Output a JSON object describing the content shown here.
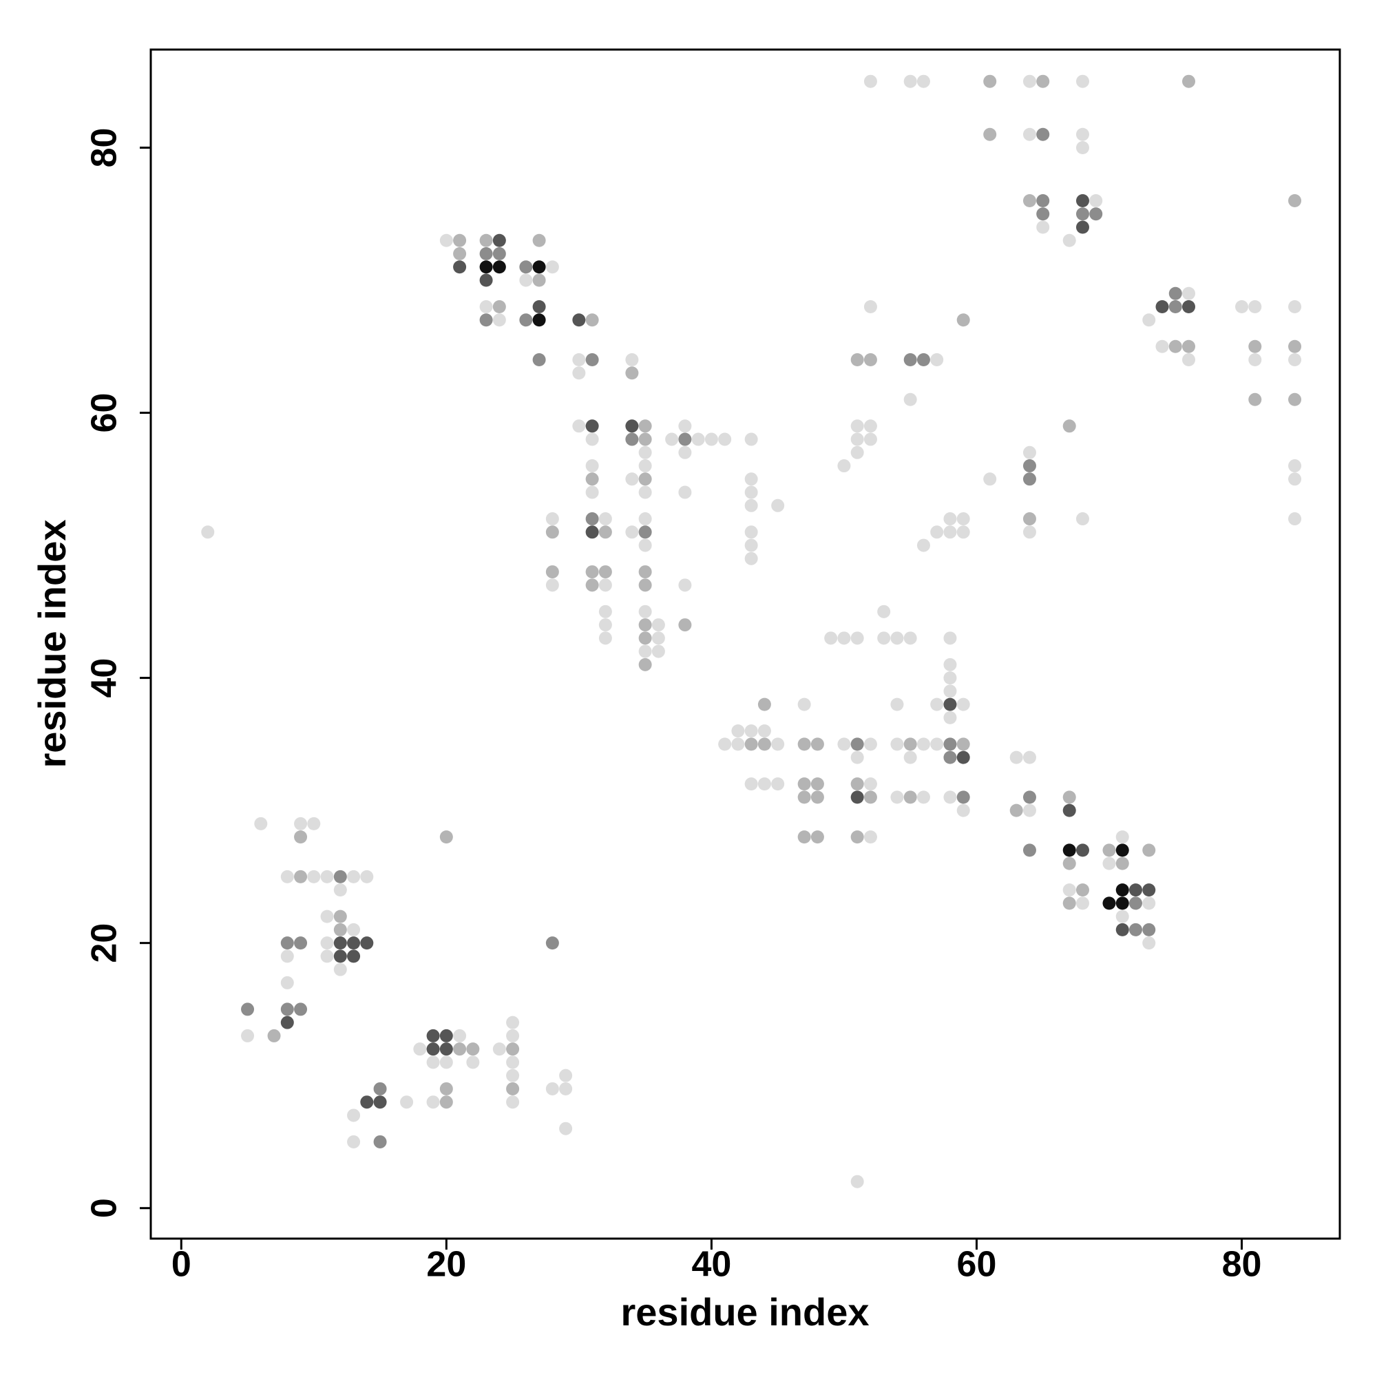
{
  "chart_data": {
    "type": "scatter",
    "xlabel": "residue index",
    "ylabel": "residue index",
    "xlim": [
      -2.3,
      87.4
    ],
    "ylim": [
      -2.3,
      87.4
    ],
    "xticks": [
      0,
      20,
      40,
      60,
      80
    ],
    "yticks": [
      0,
      20,
      40,
      60,
      80
    ],
    "grid": false,
    "x": [
      2,
      6,
      9,
      10,
      9,
      8,
      9,
      10,
      11,
      12,
      13,
      14,
      12,
      11,
      12,
      12,
      13,
      8,
      9,
      11,
      12,
      13,
      14,
      8,
      11,
      12,
      13,
      12,
      8,
      5,
      8,
      9,
      8,
      5,
      7,
      20,
      28,
      19,
      20,
      21,
      18,
      19,
      20,
      21,
      22,
      24,
      25,
      19,
      20,
      22,
      25,
      25,
      25,
      25,
      25,
      25,
      20,
      19,
      20,
      17,
      14,
      15,
      15,
      13,
      13,
      15,
      28,
      29,
      29,
      29,
      20,
      21,
      23,
      24,
      21,
      23,
      24,
      21,
      23,
      24,
      23,
      26,
      27,
      27,
      26,
      27,
      28,
      23,
      24,
      23,
      24,
      26,
      27,
      27,
      27,
      30,
      31,
      30,
      31,
      30,
      30,
      31,
      31,
      31,
      31,
      31,
      28,
      28,
      31,
      32,
      31,
      32,
      28,
      28,
      31,
      32,
      31,
      32,
      32,
      32,
      32,
      34,
      34,
      34,
      35,
      34,
      35,
      35,
      35,
      34,
      35,
      35,
      35,
      34,
      35,
      35,
      35,
      35,
      35,
      35,
      36,
      35,
      36,
      35,
      36,
      35,
      37,
      38,
      38,
      39,
      40,
      41,
      38,
      38,
      38,
      38,
      43,
      43,
      43,
      43,
      45,
      43,
      43,
      43,
      41,
      42,
      42,
      43,
      43,
      44,
      44,
      45,
      44,
      43,
      44,
      45,
      47,
      47,
      48,
      47,
      48,
      47,
      48,
      47,
      48,
      49,
      50,
      51,
      50,
      51,
      52,
      51,
      51,
      52,
      51,
      52,
      51,
      52,
      53,
      53,
      54,
      55,
      54,
      54,
      55,
      56,
      55,
      54,
      55,
      56,
      57,
      58,
      59,
      58,
      58,
      58,
      58,
      58,
      57,
      58,
      59,
      58,
      59,
      58,
      59,
      59,
      51,
      50,
      51,
      52,
      51,
      52,
      51,
      51,
      52,
      52,
      55,
      56,
      57,
      55,
      56,
      57,
      58,
      59,
      58,
      59,
      59,
      52,
      55,
      56,
      61,
      61,
      64,
      65,
      64,
      65,
      68,
      68,
      68,
      76,
      64,
      65,
      65,
      65,
      67,
      68,
      69,
      68,
      69,
      68,
      61,
      64,
      64,
      64,
      64,
      64,
      67,
      68,
      73,
      74,
      75,
      76,
      75,
      76,
      74,
      75,
      76,
      76,
      80,
      81,
      81,
      81,
      81,
      84,
      84,
      84,
      84,
      84,
      84,
      84,
      84,
      63,
      64,
      63,
      64,
      64,
      64,
      67,
      67,
      67,
      68,
      67,
      67,
      68,
      67,
      68,
      70,
      71,
      71,
      70,
      71,
      71,
      72,
      73,
      70,
      71,
      72,
      73,
      71,
      71,
      72,
      73,
      73,
      73
    ],
    "y": [
      51,
      29,
      29,
      29,
      28,
      25,
      25,
      25,
      25,
      25,
      25,
      25,
      24,
      22,
      22,
      21,
      21,
      20,
      20,
      20,
      20,
      20,
      20,
      19,
      19,
      19,
      19,
      18,
      17,
      15,
      15,
      15,
      14,
      13,
      13,
      28,
      20,
      13,
      13,
      13,
      12,
      12,
      12,
      12,
      12,
      12,
      12,
      11,
      11,
      11,
      11,
      13,
      14,
      10,
      9,
      8,
      9,
      8,
      8,
      8,
      8,
      8,
      9,
      7,
      5,
      5,
      9,
      9,
      10,
      6,
      73,
      73,
      73,
      73,
      72,
      72,
      72,
      71,
      71,
      71,
      70,
      71,
      71,
      73,
      70,
      70,
      71,
      68,
      68,
      67,
      67,
      67,
      67,
      68,
      64,
      67,
      67,
      64,
      64,
      63,
      59,
      59,
      58,
      56,
      55,
      54,
      52,
      51,
      52,
      52,
      51,
      51,
      48,
      47,
      48,
      48,
      47,
      47,
      45,
      44,
      43,
      64,
      63,
      59,
      59,
      58,
      58,
      57,
      56,
      55,
      55,
      54,
      52,
      51,
      51,
      50,
      48,
      47,
      45,
      44,
      44,
      43,
      43,
      42,
      42,
      41,
      58,
      59,
      58,
      58,
      58,
      58,
      57,
      54,
      47,
      44,
      58,
      55,
      54,
      53,
      53,
      51,
      50,
      49,
      35,
      36,
      35,
      36,
      35,
      36,
      35,
      35,
      38,
      32,
      32,
      32,
      38,
      35,
      35,
      32,
      32,
      31,
      31,
      28,
      28,
      43,
      43,
      43,
      35,
      35,
      35,
      34,
      32,
      32,
      31,
      31,
      28,
      28,
      45,
      43,
      43,
      43,
      38,
      35,
      35,
      35,
      34,
      31,
      31,
      31,
      38,
      38,
      38,
      43,
      41,
      40,
      39,
      37,
      35,
      35,
      35,
      34,
      34,
      31,
      31,
      30,
      2,
      56,
      59,
      59,
      58,
      58,
      57,
      64,
      64,
      68,
      64,
      64,
      64,
      61,
      50,
      51,
      52,
      52,
      51,
      51,
      67,
      85,
      85,
      85,
      85,
      81,
      85,
      85,
      81,
      81,
      85,
      81,
      80,
      85,
      76,
      76,
      75,
      74,
      73,
      76,
      76,
      75,
      75,
      74,
      55,
      57,
      56,
      55,
      52,
      51,
      59,
      52,
      67,
      68,
      69,
      69,
      68,
      68,
      65,
      65,
      65,
      64,
      68,
      68,
      65,
      64,
      61,
      76,
      68,
      65,
      64,
      61,
      56,
      55,
      52,
      34,
      34,
      30,
      31,
      30,
      27,
      31,
      30,
      27,
      27,
      26,
      24,
      24,
      23,
      23,
      27,
      27,
      28,
      26,
      26,
      24,
      24,
      24,
      23,
      23,
      23,
      23,
      22,
      21,
      21,
      21,
      27,
      20
    ],
    "colors": [
      "#dcdcdc",
      "#dcdcdc",
      "#dcdcdc",
      "#dcdcdc",
      "#b4b4b4",
      "#dcdcdc",
      "#b4b4b4",
      "#dcdcdc",
      "#dcdcdc",
      "#8c8c8c",
      "#dcdcdc",
      "#dcdcdc",
      "#dcdcdc",
      "#dcdcdc",
      "#b4b4b4",
      "#b4b4b4",
      "#dcdcdc",
      "#8c8c8c",
      "#8c8c8c",
      "#dcdcdc",
      "#555555",
      "#555555",
      "#555555",
      "#dcdcdc",
      "#dcdcdc",
      "#555555",
      "#555555",
      "#dcdcdc",
      "#dcdcdc",
      "#8c8c8c",
      "#8c8c8c",
      "#8c8c8c",
      "#555555",
      "#dcdcdc",
      "#b4b4b4",
      "#b4b4b4",
      "#8c8c8c",
      "#555555",
      "#555555",
      "#dcdcdc",
      "#dcdcdc",
      "#555555",
      "#555555",
      "#b4b4b4",
      "#b4b4b4",
      "#dcdcdc",
      "#b4b4b4",
      "#dcdcdc",
      "#dcdcdc",
      "#dcdcdc",
      "#dcdcdc",
      "#dcdcdc",
      "#dcdcdc",
      "#dcdcdc",
      "#b4b4b4",
      "#dcdcdc",
      "#b4b4b4",
      "#dcdcdc",
      "#b4b4b4",
      "#dcdcdc",
      "#555555",
      "#555555",
      "#8c8c8c",
      "#dcdcdc",
      "#dcdcdc",
      "#8c8c8c",
      "#dcdcdc",
      "#dcdcdc",
      "#dcdcdc",
      "#dcdcdc",
      "#dcdcdc",
      "#b4b4b4",
      "#b4b4b4",
      "#555555",
      "#b4b4b4",
      "#8c8c8c",
      "#8c8c8c",
      "#555555",
      "#111111",
      "#111111",
      "#555555",
      "#8c8c8c",
      "#111111",
      "#b4b4b4",
      "#dcdcdc",
      "#b4b4b4",
      "#dcdcdc",
      "#dcdcdc",
      "#b4b4b4",
      "#8c8c8c",
      "#dcdcdc",
      "#8c8c8c",
      "#111111",
      "#555555",
      "#8c8c8c",
      "#555555",
      "#b4b4b4",
      "#dcdcdc",
      "#8c8c8c",
      "#dcdcdc",
      "#dcdcdc",
      "#555555",
      "#dcdcdc",
      "#dcdcdc",
      "#b4b4b4",
      "#dcdcdc",
      "#dcdcdc",
      "#b4b4b4",
      "#8c8c8c",
      "#dcdcdc",
      "#555555",
      "#b4b4b4",
      "#b4b4b4",
      "#dcdcdc",
      "#b4b4b4",
      "#b4b4b4",
      "#b4b4b4",
      "#dcdcdc",
      "#dcdcdc",
      "#dcdcdc",
      "#dcdcdc",
      "#dcdcdc",
      "#b4b4b4",
      "#555555",
      "#b4b4b4",
      "#8c8c8c",
      "#b4b4b4",
      "#dcdcdc",
      "#dcdcdc",
      "#dcdcdc",
      "#b4b4b4",
      "#dcdcdc",
      "#dcdcdc",
      "#dcdcdc",
      "#8c8c8c",
      "#dcdcdc",
      "#b4b4b4",
      "#b4b4b4",
      "#dcdcdc",
      "#b4b4b4",
      "#dcdcdc",
      "#b4b4b4",
      "#dcdcdc",
      "#dcdcdc",
      "#dcdcdc",
      "#b4b4b4",
      "#dcdcdc",
      "#dcdcdc",
      "#8c8c8c",
      "#dcdcdc",
      "#dcdcdc",
      "#dcdcdc",
      "#dcdcdc",
      "#dcdcdc",
      "#dcdcdc",
      "#b4b4b4",
      "#dcdcdc",
      "#dcdcdc",
      "#dcdcdc",
      "#dcdcdc",
      "#dcdcdc",
      "#dcdcdc",
      "#dcdcdc",
      "#dcdcdc",
      "#dcdcdc",
      "#dcdcdc",
      "#dcdcdc",
      "#dcdcdc",
      "#b4b4b4",
      "#dcdcdc",
      "#b4b4b4",
      "#dcdcdc",
      "#b4b4b4",
      "#dcdcdc",
      "#dcdcdc",
      "#dcdcdc",
      "#dcdcdc",
      "#b4b4b4",
      "#b4b4b4",
      "#b4b4b4",
      "#b4b4b4",
      "#b4b4b4",
      "#b4b4b4",
      "#b4b4b4",
      "#b4b4b4",
      "#dcdcdc",
      "#dcdcdc",
      "#dcdcdc",
      "#dcdcdc",
      "#8c8c8c",
      "#dcdcdc",
      "#dcdcdc",
      "#b4b4b4",
      "#dcdcdc",
      "#555555",
      "#b4b4b4",
      "#b4b4b4",
      "#dcdcdc",
      "#dcdcdc",
      "#dcdcdc",
      "#dcdcdc",
      "#dcdcdc",
      "#dcdcdc",
      "#dcdcdc",
      "#b4b4b4",
      "#dcdcdc",
      "#dcdcdc",
      "#dcdcdc",
      "#b4b4b4",
      "#dcdcdc",
      "#dcdcdc",
      "#555555",
      "#dcdcdc",
      "#dcdcdc",
      "#dcdcdc",
      "#dcdcdc",
      "#dcdcdc",
      "#dcdcdc",
      "#dcdcdc",
      "#8c8c8c",
      "#b4b4b4",
      "#8c8c8c",
      "#555555",
      "#dcdcdc",
      "#8c8c8c",
      "#dcdcdc",
      "#dcdcdc",
      "#dcdcdc",
      "#dcdcdc",
      "#dcdcdc",
      "#dcdcdc",
      "#dcdcdc",
      "#dcdcdc",
      "#b4b4b4",
      "#b4b4b4",
      "#dcdcdc",
      "#8c8c8c",
      "#8c8c8c",
      "#dcdcdc",
      "#dcdcdc",
      "#dcdcdc",
      "#dcdcdc",
      "#dcdcdc",
      "#dcdcdc",
      "#dcdcdc",
      "#dcdcdc",
      "#b4b4b4",
      "#dcdcdc",
      "#dcdcdc",
      "#dcdcdc",
      "#b4b4b4",
      "#b4b4b4",
      "#dcdcdc",
      "#b4b4b4",
      "#dcdcdc",
      "#8c8c8c",
      "#dcdcdc",
      "#dcdcdc",
      "#dcdcdc",
      "#b4b4b4",
      "#b4b4b4",
      "#8c8c8c",
      "#8c8c8c",
      "#dcdcdc",
      "#dcdcdc",
      "#555555",
      "#dcdcdc",
      "#8c8c8c",
      "#8c8c8c",
      "#555555",
      "#dcdcdc",
      "#dcdcdc",
      "#8c8c8c",
      "#8c8c8c",
      "#b4b4b4",
      "#dcdcdc",
      "#b4b4b4",
      "#dcdcdc",
      "#dcdcdc",
      "#555555",
      "#8c8c8c",
      "#dcdcdc",
      "#8c8c8c",
      "#555555",
      "#dcdcdc",
      "#b4b4b4",
      "#b4b4b4",
      "#dcdcdc",
      "#dcdcdc",
      "#dcdcdc",
      "#b4b4b4",
      "#dcdcdc",
      "#b4b4b4",
      "#b4b4b4",
      "#dcdcdc",
      "#b4b4b4",
      "#dcdcdc",
      "#b4b4b4",
      "#dcdcdc",
      "#dcdcdc",
      "#dcdcdc",
      "#dcdcdc",
      "#dcdcdc",
      "#b4b4b4",
      "#8c8c8c",
      "#dcdcdc",
      "#8c8c8c",
      "#b4b4b4",
      "#555555",
      "#111111",
      "#555555",
      "#b4b4b4",
      "#dcdcdc",
      "#b4b4b4",
      "#b4b4b4",
      "#dcdcdc",
      "#b4b4b4",
      "#111111",
      "#dcdcdc",
      "#dcdcdc",
      "#b4b4b4",
      "#111111",
      "#555555",
      "#555555",
      "#111111",
      "#111111",
      "#8c8c8c",
      "#dcdcdc",
      "#dcdcdc",
      "#555555",
      "#8c8c8c",
      "#8c8c8c",
      "#b4b4b4",
      "#dcdcdc"
    ]
  }
}
